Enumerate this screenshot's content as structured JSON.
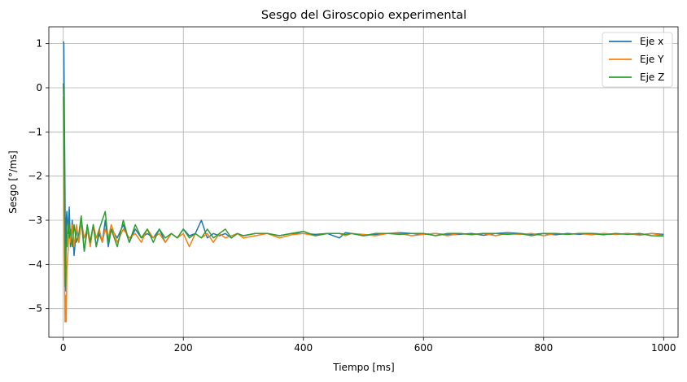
{
  "chart_data": {
    "type": "line",
    "title": "Sesgo del Giroscopio experimental",
    "xlabel": "Tiempo [ms]",
    "ylabel": "Sesgo [°/ms]",
    "xlim": [
      -24,
      1024
    ],
    "ylim": [
      -5.65,
      1.38
    ],
    "xticks": [
      0,
      200,
      400,
      600,
      800,
      1000
    ],
    "yticks": [
      1,
      0,
      -1,
      -2,
      -3,
      -4,
      -5
    ],
    "xtick_labels": [
      "0",
      "200",
      "400",
      "600",
      "800",
      "1000"
    ],
    "ytick_labels": [
      "1",
      "0",
      "−1",
      "−2",
      "−3",
      "−4",
      "−5"
    ],
    "grid": true,
    "legend_position": "top-right",
    "series": [
      {
        "name": "Eje x",
        "color": "#1f77b4",
        "x": [
          0,
          1,
          2,
          3,
          4,
          5,
          6,
          8,
          10,
          12,
          15,
          18,
          22,
          26,
          30,
          35,
          40,
          45,
          50,
          55,
          60,
          65,
          70,
          75,
          80,
          90,
          100,
          110,
          120,
          130,
          140,
          150,
          160,
          170,
          180,
          190,
          200,
          210,
          220,
          230,
          240,
          250,
          260,
          270,
          280,
          290,
          300,
          320,
          340,
          360,
          380,
          400,
          420,
          440,
          460,
          470,
          480,
          500,
          520,
          540,
          560,
          580,
          600,
          620,
          640,
          660,
          680,
          700,
          720,
          740,
          760,
          780,
          800,
          820,
          840,
          860,
          880,
          900,
          920,
          940,
          960,
          980,
          1000
        ],
        "y": [
          1.05,
          1.0,
          -0.8,
          -2.5,
          -4.6,
          -3.0,
          -2.8,
          -3.3,
          -2.7,
          -3.6,
          -3.0,
          -3.8,
          -3.2,
          -3.5,
          -3.0,
          -3.7,
          -3.2,
          -3.5,
          -3.1,
          -3.6,
          -3.3,
          -3.5,
          -3.0,
          -3.6,
          -3.2,
          -3.4,
          -3.1,
          -3.5,
          -3.2,
          -3.4,
          -3.3,
          -3.4,
          -3.2,
          -3.5,
          -3.3,
          -3.4,
          -3.2,
          -3.35,
          -3.3,
          -3.0,
          -3.4,
          -3.3,
          -3.35,
          -3.3,
          -3.4,
          -3.3,
          -3.35,
          -3.3,
          -3.3,
          -3.35,
          -3.3,
          -3.3,
          -3.32,
          -3.3,
          -3.4,
          -3.28,
          -3.3,
          -3.35,
          -3.32,
          -3.3,
          -3.28,
          -3.3,
          -3.32,
          -3.3,
          -3.33,
          -3.32,
          -3.3,
          -3.34,
          -3.3,
          -3.28,
          -3.3,
          -3.32,
          -3.3,
          -3.33,
          -3.3,
          -3.32,
          -3.3,
          -3.31,
          -3.32,
          -3.3,
          -3.33,
          -3.3,
          -3.32
        ]
      },
      {
        "name": "Eje Y",
        "color": "#ff7f0e",
        "x": [
          0,
          1,
          2,
          3,
          4,
          5,
          6,
          8,
          10,
          12,
          15,
          18,
          22,
          26,
          30,
          35,
          40,
          45,
          50,
          55,
          60,
          65,
          70,
          75,
          80,
          90,
          100,
          110,
          120,
          130,
          140,
          150,
          160,
          170,
          180,
          190,
          200,
          210,
          220,
          230,
          240,
          250,
          260,
          270,
          280,
          290,
          300,
          320,
          340,
          360,
          380,
          400,
          420,
          440,
          460,
          470,
          480,
          500,
          520,
          540,
          560,
          580,
          600,
          620,
          640,
          660,
          680,
          700,
          720,
          740,
          760,
          780,
          800,
          820,
          840,
          860,
          880,
          900,
          920,
          940,
          960,
          980,
          1000
        ],
        "y": [
          -0.2,
          -2.0,
          -3.8,
          -5.3,
          -4.7,
          -5.3,
          -4.1,
          -3.7,
          -3.2,
          -3.5,
          -3.1,
          -3.6,
          -3.1,
          -3.5,
          -3.0,
          -3.4,
          -3.2,
          -3.6,
          -3.1,
          -3.4,
          -3.2,
          -3.5,
          -3.2,
          -3.4,
          -3.1,
          -3.5,
          -3.2,
          -3.4,
          -3.3,
          -3.5,
          -3.2,
          -3.4,
          -3.3,
          -3.5,
          -3.3,
          -3.4,
          -3.3,
          -3.6,
          -3.3,
          -3.4,
          -3.3,
          -3.5,
          -3.3,
          -3.4,
          -3.35,
          -3.3,
          -3.4,
          -3.35,
          -3.3,
          -3.4,
          -3.33,
          -3.3,
          -3.35,
          -3.3,
          -3.3,
          -3.35,
          -3.3,
          -3.32,
          -3.35,
          -3.3,
          -3.3,
          -3.35,
          -3.32,
          -3.3,
          -3.35,
          -3.3,
          -3.33,
          -3.3,
          -3.35,
          -3.3,
          -3.32,
          -3.3,
          -3.35,
          -3.3,
          -3.32,
          -3.3,
          -3.33,
          -3.3,
          -3.32,
          -3.3,
          -3.34,
          -3.3,
          -3.35
        ]
      },
      {
        "name": "Eje Z",
        "color": "#2ca02c",
        "x": [
          0,
          1,
          2,
          3,
          4,
          5,
          6,
          8,
          10,
          12,
          15,
          18,
          22,
          26,
          30,
          35,
          40,
          45,
          50,
          55,
          60,
          65,
          70,
          75,
          80,
          90,
          100,
          110,
          120,
          130,
          140,
          150,
          160,
          170,
          180,
          190,
          200,
          210,
          220,
          230,
          240,
          250,
          260,
          270,
          280,
          290,
          300,
          320,
          340,
          360,
          380,
          400,
          420,
          440,
          460,
          470,
          480,
          500,
          520,
          540,
          560,
          580,
          600,
          620,
          640,
          660,
          680,
          700,
          720,
          740,
          760,
          780,
          800,
          820,
          840,
          860,
          880,
          900,
          920,
          940,
          960,
          980,
          1000
        ],
        "y": [
          0.1,
          -0.4,
          -2.5,
          -4.5,
          -3.8,
          -3.5,
          -3.6,
          -3.0,
          -3.4,
          -3.2,
          -3.6,
          -3.1,
          -3.5,
          -3.3,
          -2.9,
          -3.7,
          -3.1,
          -3.5,
          -3.1,
          -3.6,
          -3.2,
          -3.0,
          -2.8,
          -3.5,
          -3.2,
          -3.6,
          -3.0,
          -3.5,
          -3.1,
          -3.4,
          -3.2,
          -3.5,
          -3.2,
          -3.4,
          -3.3,
          -3.4,
          -3.2,
          -3.4,
          -3.3,
          -3.4,
          -3.2,
          -3.4,
          -3.3,
          -3.2,
          -3.4,
          -3.3,
          -3.35,
          -3.3,
          -3.3,
          -3.35,
          -3.3,
          -3.25,
          -3.35,
          -3.3,
          -3.3,
          -3.32,
          -3.3,
          -3.35,
          -3.3,
          -3.3,
          -3.32,
          -3.3,
          -3.3,
          -3.35,
          -3.3,
          -3.3,
          -3.32,
          -3.3,
          -3.3,
          -3.32,
          -3.3,
          -3.35,
          -3.3,
          -3.3,
          -3.32,
          -3.3,
          -3.3,
          -3.33,
          -3.3,
          -3.32,
          -3.3,
          -3.35,
          -3.36
        ]
      }
    ]
  }
}
